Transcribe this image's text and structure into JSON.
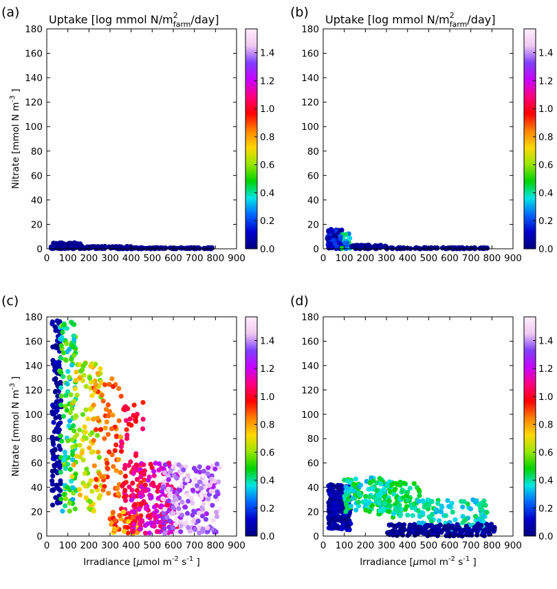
{
  "figure": {
    "title_text": "Uptake [log mmol N/m",
    "title_sup": "2",
    "title_sub": "farm",
    "title_tail": "/day]",
    "ylabel_text": "Nitrate [mmol N m",
    "ylabel_sup": "-3",
    "ylabel_tail": " ]",
    "xlabel_pre": "Irradiance [",
    "xlabel_mu": "μ",
    "xlabel_mid": "mol m",
    "xlabel_sup1": "-2",
    "xlabel_s": " s",
    "xlabel_sup2": "-1",
    "xlabel_tail": " ]",
    "colormap": [
      "#000080",
      "#0000cc",
      "#0066ff",
      "#00e5e5",
      "#00d200",
      "#9ae600",
      "#ffd700",
      "#ff8000",
      "#ff0000",
      "#ff0080",
      "#c800ff",
      "#8040ff",
      "#f0c8f0",
      "#ffeeff"
    ]
  },
  "chart_data": [
    {
      "type": "scatter",
      "panel": "(a)",
      "xlim": [
        0,
        900
      ],
      "ylim": [
        0,
        180
      ],
      "xticks": [
        0,
        100,
        200,
        300,
        400,
        500,
        600,
        700,
        800,
        900
      ],
      "yticks": [
        0,
        20,
        40,
        60,
        80,
        100,
        120,
        140,
        160,
        180
      ],
      "colorbar": {
        "ticks": [
          "0.0",
          "0.2",
          "0.4",
          "0.6",
          "0.8",
          "1.0",
          "1.2",
          "1.4"
        ],
        "range": [
          0,
          1.57
        ]
      },
      "show_title": true,
      "show_ylabel": true,
      "show_xlabel": false,
      "clusters": [
        {
          "x": [
            20,
            160
          ],
          "y": [
            0,
            5
          ],
          "c": [
            0,
            0.05
          ],
          "n": 120
        },
        {
          "x": [
            160,
            400
          ],
          "y": [
            0,
            2
          ],
          "c": [
            0,
            0.03
          ],
          "n": 80
        },
        {
          "x": [
            400,
            810
          ],
          "y": [
            0,
            1
          ],
          "c": [
            0,
            0.02
          ],
          "n": 90
        }
      ]
    },
    {
      "type": "scatter",
      "panel": "(b)",
      "xlim": [
        0,
        900
      ],
      "ylim": [
        0,
        180
      ],
      "xticks": [
        0,
        100,
        200,
        300,
        400,
        500,
        600,
        700,
        800,
        900
      ],
      "yticks": [
        0,
        20,
        40,
        60,
        80,
        100,
        120,
        140,
        160,
        180
      ],
      "colorbar": {
        "ticks": [
          "0.0",
          "0.2",
          "0.4",
          "0.6",
          "0.8",
          "1.0",
          "1.2",
          "1.4"
        ],
        "range": [
          0,
          1.57
        ]
      },
      "show_title": true,
      "show_ylabel": false,
      "show_xlabel": false,
      "clusters": [
        {
          "x": [
            20,
            90
          ],
          "y": [
            0,
            16
          ],
          "c": [
            0,
            0.2
          ],
          "n": 110
        },
        {
          "x": [
            80,
            130
          ],
          "y": [
            0,
            13
          ],
          "c": [
            0.2,
            0.5
          ],
          "n": 25
        },
        {
          "x": [
            130,
            300
          ],
          "y": [
            0,
            3
          ],
          "c": [
            0,
            0.05
          ],
          "n": 60
        },
        {
          "x": [
            300,
            780
          ],
          "y": [
            0,
            1
          ],
          "c": [
            0,
            0.02
          ],
          "n": 90
        }
      ]
    },
    {
      "type": "scatter",
      "panel": "(c)",
      "xlim": [
        0,
        900
      ],
      "ylim": [
        0,
        180
      ],
      "xticks": [
        0,
        100,
        200,
        300,
        400,
        500,
        600,
        700,
        800,
        900
      ],
      "yticks": [
        0,
        20,
        40,
        60,
        80,
        100,
        120,
        140,
        160,
        180
      ],
      "colorbar": {
        "ticks": [
          "0.0",
          "0.2",
          "0.4",
          "0.6",
          "0.8",
          "1.0",
          "1.2",
          "1.4"
        ],
        "range": [
          0,
          1.57
        ]
      },
      "show_title": false,
      "show_ylabel": true,
      "show_xlabel": true,
      "clusters": [
        {
          "x": [
            25,
            70
          ],
          "y": [
            25,
            178
          ],
          "c": [
            0,
            0.1
          ],
          "n": 140
        },
        {
          "x": [
            60,
            140
          ],
          "y": [
            20,
            178
          ],
          "c": [
            0.3,
            0.6
          ],
          "n": 130
        },
        {
          "x": [
            120,
            260
          ],
          "y": [
            20,
            145
          ],
          "c": [
            0.55,
            0.8
          ],
          "n": 110
        },
        {
          "x": [
            220,
            360
          ],
          "y": [
            30,
            130
          ],
          "c": [
            0.8,
            0.95
          ],
          "n": 70
        },
        {
          "x": [
            350,
            470
          ],
          "y": [
            5,
            110
          ],
          "c": [
            0.9,
            1.1
          ],
          "n": 70
        },
        {
          "x": [
            300,
            450
          ],
          "y": [
            2,
            20
          ],
          "c": [
            0.7,
            1.0
          ],
          "n": 60
        },
        {
          "x": [
            400,
            620
          ],
          "y": [
            2,
            60
          ],
          "c": [
            1.0,
            1.25
          ],
          "n": 160
        },
        {
          "x": [
            550,
            820
          ],
          "y": [
            2,
            60
          ],
          "c": [
            1.25,
            1.55
          ],
          "n": 200
        }
      ]
    },
    {
      "type": "scatter",
      "panel": "(d)",
      "xlim": [
        0,
        900
      ],
      "ylim": [
        0,
        180
      ],
      "xticks": [
        0,
        100,
        200,
        300,
        400,
        500,
        600,
        700,
        800,
        900
      ],
      "yticks": [
        0,
        20,
        40,
        60,
        80,
        100,
        120,
        140,
        160,
        180
      ],
      "colorbar": {
        "ticks": [
          "0.0",
          "0.2",
          "0.4",
          "0.6",
          "0.8",
          "1.0",
          "1.2",
          "1.4"
        ],
        "range": [
          0,
          1.57
        ]
      },
      "show_title": false,
      "show_ylabel": false,
      "show_xlabel": true,
      "clusters": [
        {
          "x": [
            25,
            130
          ],
          "y": [
            5,
            43
          ],
          "c": [
            0,
            0.12
          ],
          "n": 200
        },
        {
          "x": [
            100,
            300
          ],
          "y": [
            20,
            48
          ],
          "c": [
            0.3,
            0.5
          ],
          "n": 120
        },
        {
          "x": [
            250,
            460
          ],
          "y": [
            15,
            45
          ],
          "c": [
            0.35,
            0.5
          ],
          "n": 110
        },
        {
          "x": [
            450,
            780
          ],
          "y": [
            5,
            30
          ],
          "c": [
            0.3,
            0.45
          ],
          "n": 110
        },
        {
          "x": [
            300,
            820
          ],
          "y": [
            0,
            10
          ],
          "c": [
            0,
            0.08
          ],
          "n": 180
        }
      ]
    }
  ]
}
